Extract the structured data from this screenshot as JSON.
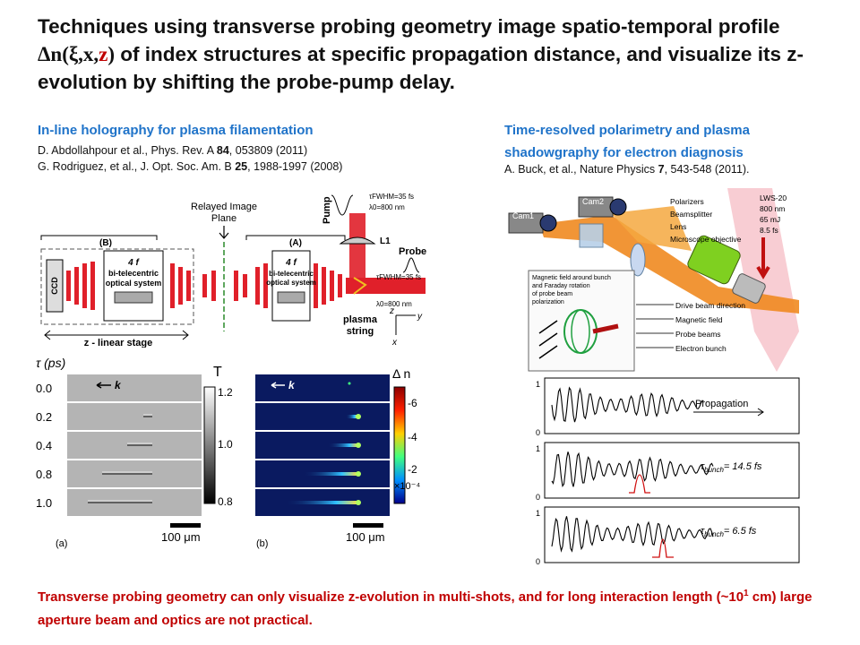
{
  "slide": {
    "title_part1": "Techniques using transverse probing geometry image spatio-temporal profile ",
    "title_symbol": "Δn(ξ,x,",
    "title_symbol_z": "z",
    "title_symbol_close": ")",
    "title_part2": " of index structures at specific propagation distance, and visualize its z-evolution by shifting the probe-pump delay.",
    "footer_part1": "Transverse probing geometry can only visualize z-evolution in multi-shots, and for long interaction length (~10",
    "footer_sup": "1",
    "footer_part2": " cm) large aperture beam and optics are not practical."
  },
  "left": {
    "heading": "In-line holography for plasma filamentation",
    "ref1_pre": "D. Abdollahpour et al., Phys. Rev. A ",
    "ref1_bold": "84",
    "ref1_post": ", 053809 (2011)",
    "ref2_pre": "G. Rodriguez, et al., J. Opt. Soc. Am. B ",
    "ref2_bold": "25",
    "ref2_post": ", 1988-1997 (2008)",
    "setup": {
      "relayed_label_1": "Relayed Image",
      "relayed_label_2": "Plane",
      "label_b": "(B)",
      "label_a": "(A)",
      "ccd": "CCD",
      "optics_4f": "4 f",
      "optics_line1": "bi-telecentric",
      "optics_line2": "optical system",
      "stage_label": "z - linear stage",
      "pump": "Pump",
      "probe": "Probe",
      "lens": "L1",
      "plasma_1": "plasma",
      "plasma_2": "string",
      "pump_spec_1": "τFWHM=35 fs",
      "pump_spec_2": "λ0=800 nm",
      "probe_spec_1": "τFWHM=35 fs",
      "probe_spec_2": "λ0=800 nm",
      "axis_z": "z",
      "axis_y": "y",
      "axis_x": "x"
    },
    "images": {
      "tau_label": "τ (ps)",
      "delays": [
        "0.0",
        "0.2",
        "0.4",
        "0.8",
        "1.0"
      ],
      "k_label": "k",
      "colorbar_a_title": "T",
      "colorbar_a_ticks": [
        "1.2",
        "1.0",
        "0.8"
      ],
      "colorbar_b_title": "Δ n",
      "colorbar_b_ticks": [
        "-6",
        "-4",
        "-2"
      ],
      "colorbar_b_exp": "×10⁻⁴",
      "scale_a": "100 μm",
      "scale_b": "100 μm",
      "panel_a": "(a)",
      "panel_b": "(b)"
    }
  },
  "right": {
    "heading_line1": "Time-resolved polarimetry and plasma",
    "heading_line2": "shadowgraphy for electron diagnosis",
    "ref_pre": "A. Buck, et al., Nature Physics ",
    "ref_bold": "7",
    "ref_post": ", 543-548 (2011).",
    "setup": {
      "cam1": "Cam1",
      "cam2": "Cam2",
      "labels": [
        "Polarizers",
        "Beamsplitter",
        "Lens",
        "Microscope objective"
      ],
      "laser_spec": [
        "LWS-20",
        "800 nm",
        "65 mJ",
        "8.5 fs"
      ],
      "inset_lines": [
        "Magnetic field around bunch",
        "and Faraday rotation",
        "of probe beam",
        "polarization"
      ],
      "legend": [
        "Drive beam direction",
        "Magnetic field",
        "Probe beams",
        "Electron bunch"
      ]
    },
    "traces": {
      "y_top": "1",
      "y_bottom": "0",
      "propagation": "Propagation",
      "tau1": "= 14.5 fs",
      "tau2": "= 6.5 fs",
      "tau_sub": "bunch"
    }
  },
  "colors": {
    "heading_blue": "#1f73c9",
    "footer_red": "#c00000",
    "beam_red": "#e0202a",
    "beam_orange": "#f08a20"
  }
}
